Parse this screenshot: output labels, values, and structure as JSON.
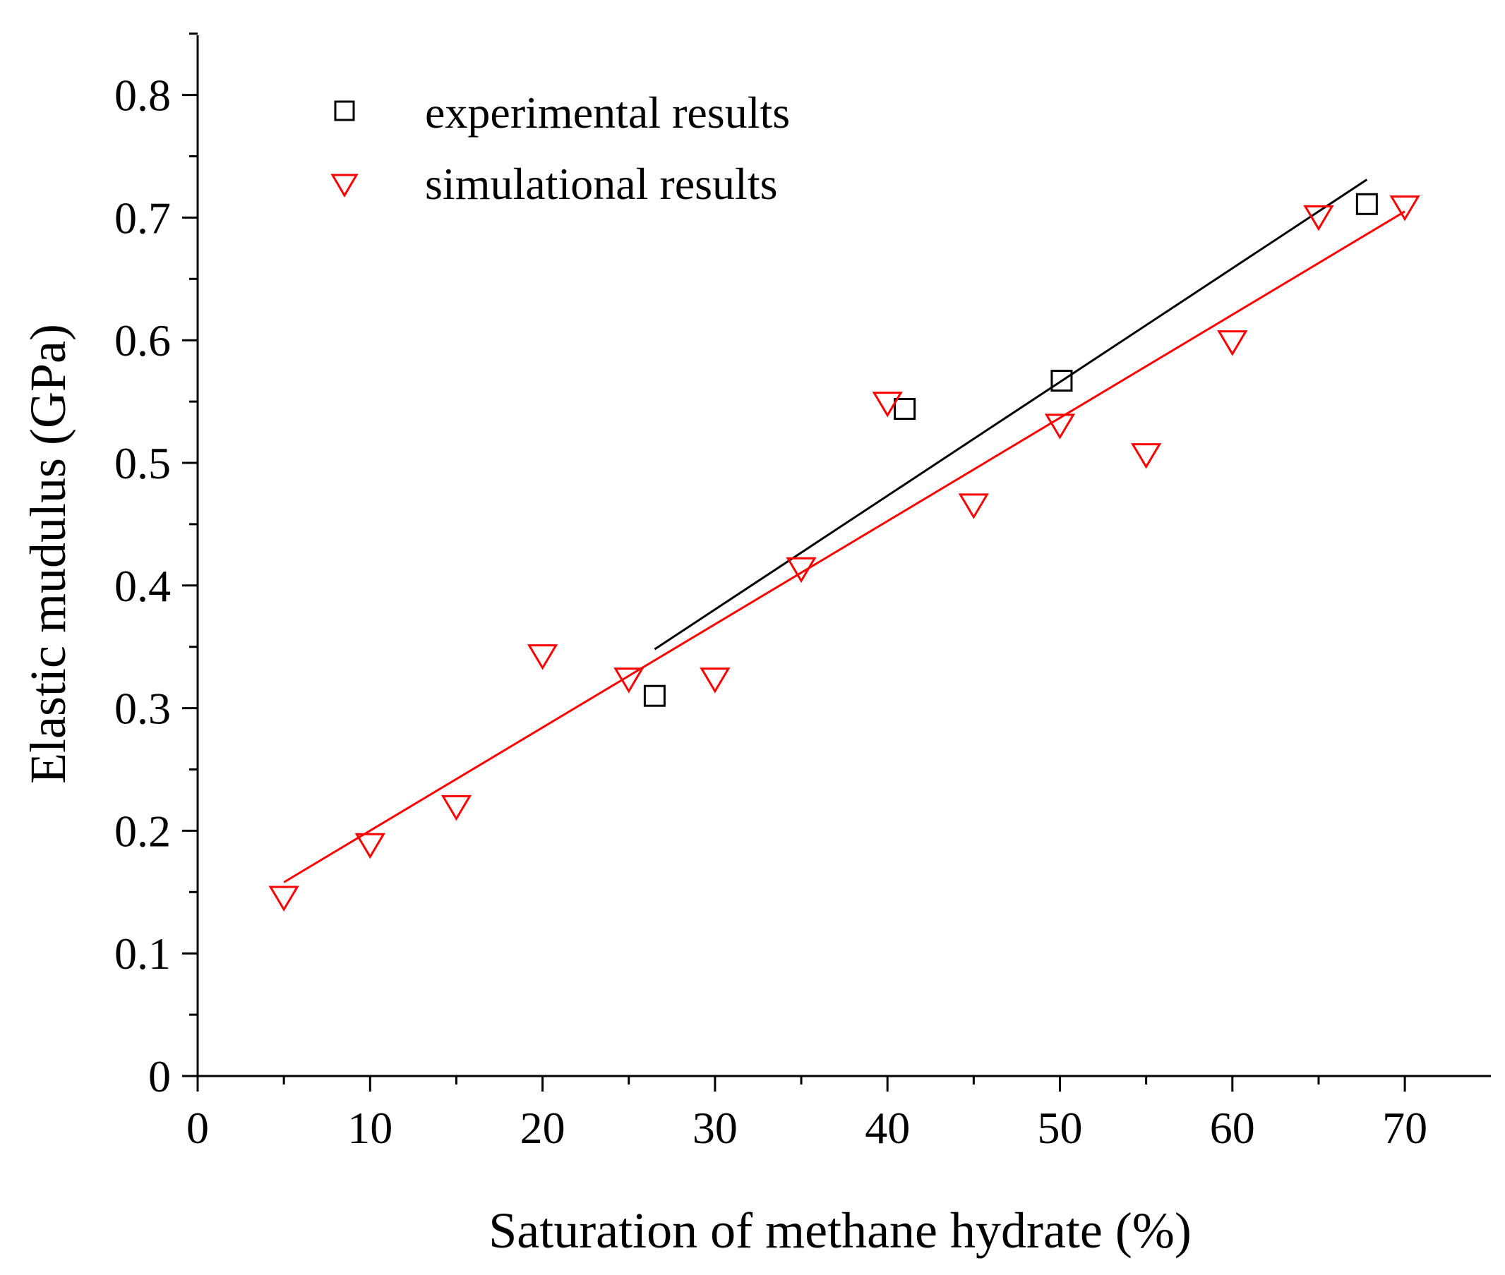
{
  "chart_data": {
    "type": "scatter",
    "title": "",
    "xlabel": "Saturation of methane hydrate (%)",
    "ylabel": "Elastic mudulus (GPa)",
    "xlim": [
      0,
      75
    ],
    "ylim": [
      0,
      0.85
    ],
    "x_ticks": [
      0,
      10,
      20,
      30,
      40,
      50,
      60,
      70
    ],
    "x_tick_labels": [
      "0",
      "10",
      "20",
      "30",
      "40",
      "50",
      "60",
      "70"
    ],
    "y_ticks": [
      0,
      0.1,
      0.2,
      0.3,
      0.4,
      0.5,
      0.6,
      0.7,
      0.8
    ],
    "y_tick_labels": [
      "0",
      "0.1",
      "0.2",
      "0.3",
      "0.4",
      "0.5",
      "0.6",
      "0.7",
      "0.8"
    ],
    "legend_position": "top-left",
    "series": [
      {
        "name": "experimental results",
        "marker": "square",
        "color": "#000000",
        "points": [
          {
            "x": 26.5,
            "y": 0.31
          },
          {
            "x": 41.0,
            "y": 0.544
          },
          {
            "x": 50.1,
            "y": 0.567
          },
          {
            "x": 67.8,
            "y": 0.711
          }
        ],
        "fit_line": {
          "x": [
            26.5,
            67.8
          ],
          "y": [
            0.348,
            0.731
          ]
        }
      },
      {
        "name": "simulational results",
        "marker": "triangle-down",
        "color": "#ff0000",
        "points": [
          {
            "x": 5,
            "y": 0.145
          },
          {
            "x": 10,
            "y": 0.188
          },
          {
            "x": 15,
            "y": 0.219
          },
          {
            "x": 20,
            "y": 0.342
          },
          {
            "x": 25,
            "y": 0.323
          },
          {
            "x": 30,
            "y": 0.323
          },
          {
            "x": 35,
            "y": 0.413
          },
          {
            "x": 40,
            "y": 0.548
          },
          {
            "x": 45,
            "y": 0.465
          },
          {
            "x": 50,
            "y": 0.53
          },
          {
            "x": 55,
            "y": 0.506
          },
          {
            "x": 60,
            "y": 0.598
          },
          {
            "x": 65,
            "y": 0.7
          },
          {
            "x": 70,
            "y": 0.708
          }
        ],
        "fit_line": {
          "x": [
            5,
            70
          ],
          "y": [
            0.158,
            0.705
          ]
        }
      }
    ]
  }
}
